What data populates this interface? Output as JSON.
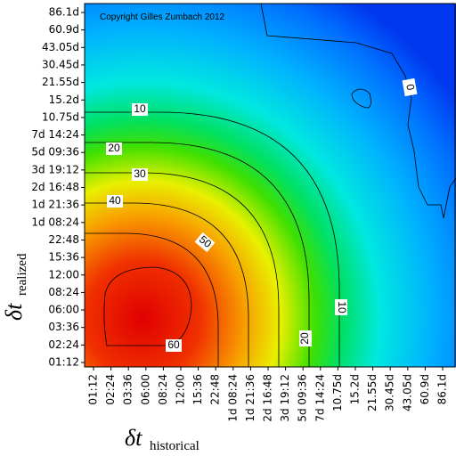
{
  "chart_data": {
    "type": "contour",
    "copyright": "Copyright Gilles Zumbach 2012",
    "x_label": {
      "symbol": "δt",
      "subscript": "historical"
    },
    "y_label": {
      "symbol": "δt",
      "subscript": "realized"
    },
    "categories": [
      "01:12",
      "02:24",
      "03:36",
      "06:00",
      "08:24",
      "12:00",
      "15:36",
      "22:48",
      "1d 08:24",
      "1d 21:36",
      "2d 16:48",
      "3d 19:12",
      "5d 09:36",
      "7d 14:24",
      "10.75d",
      "15.2d",
      "21.55d",
      "30.45d",
      "43.05d",
      "60.9d",
      "86.1d"
    ],
    "y_categories": [
      "01:12",
      "02:24",
      "03:36",
      "06:00",
      "08:24",
      "12:00",
      "15:36",
      "22:48",
      "1d 08:24",
      "1d 21:36",
      "2d 16:48",
      "3d 19:12",
      "5d 09:36",
      "7d 14:24",
      "10.75d",
      "15.2d",
      "21.55d",
      "30.45d",
      "43.05d",
      "60.9d",
      "86.1d"
    ],
    "contours": [
      {
        "level": 0
      },
      {
        "level": 10
      },
      {
        "level": 20
      },
      {
        "level": 30
      },
      {
        "level": 40
      },
      {
        "level": 50
      },
      {
        "level": 60
      }
    ]
  }
}
